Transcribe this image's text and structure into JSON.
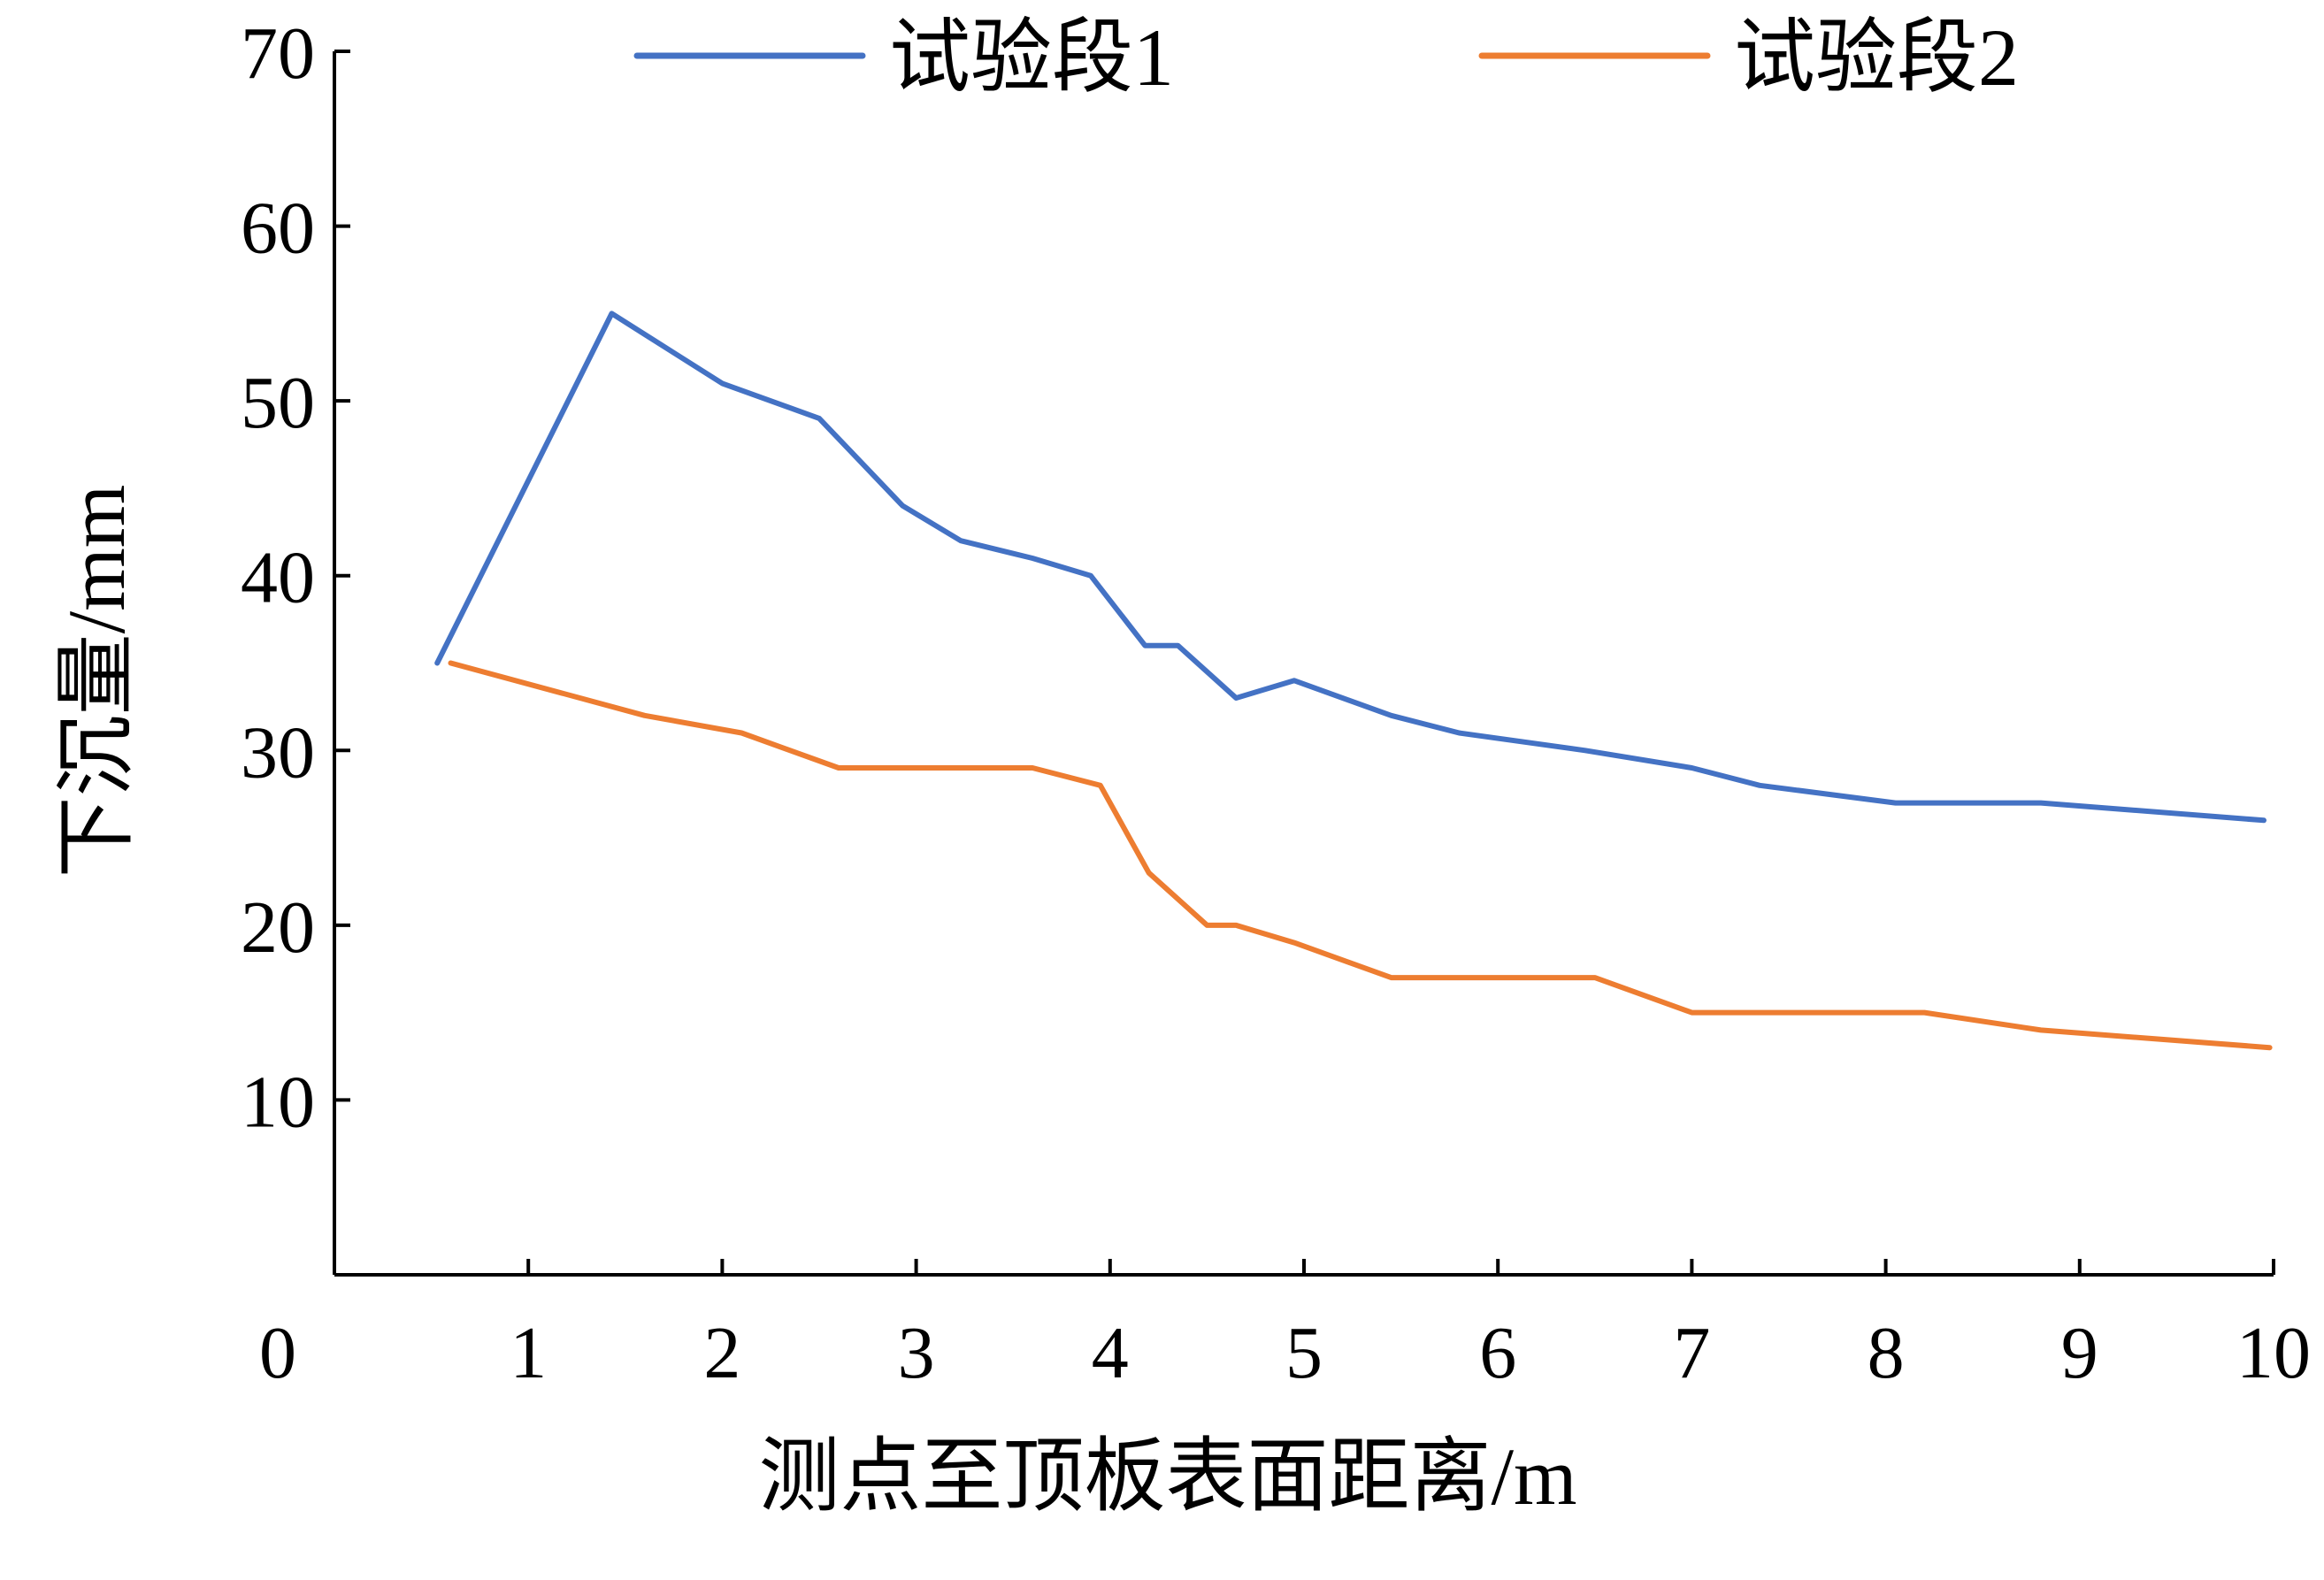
{
  "chart_data": {
    "type": "line",
    "xlabel": "测点至顶板表面距离/m",
    "ylabel": "下沉量/mm",
    "xlim": [
      0,
      10
    ],
    "ylim": [
      0,
      70
    ],
    "x_ticks": [
      0,
      1,
      2,
      3,
      4,
      5,
      6,
      7,
      8,
      9,
      10
    ],
    "y_ticks": [
      10,
      20,
      30,
      40,
      50,
      60,
      70
    ],
    "x_tick_labels": [
      "0",
      "1",
      "2",
      "3",
      "4",
      "5",
      "6",
      "7",
      "8",
      "9",
      "10"
    ],
    "y_tick_labels": [
      "10",
      "20",
      "30",
      "40",
      "50",
      "60",
      "70"
    ],
    "grid": false,
    "legend_position": "top",
    "series": [
      {
        "name": "试验段1",
        "color": "#4472c4",
        "points": [
          [
            0.53,
            35
          ],
          [
            1.43,
            55
          ],
          [
            2.0,
            51
          ],
          [
            2.5,
            49
          ],
          [
            2.93,
            44
          ],
          [
            3.23,
            42
          ],
          [
            3.6,
            41
          ],
          [
            3.9,
            40
          ],
          [
            4.18,
            36
          ],
          [
            4.35,
            36
          ],
          [
            4.65,
            33
          ],
          [
            4.95,
            34
          ],
          [
            5.45,
            32
          ],
          [
            5.8,
            31
          ],
          [
            6.45,
            30
          ],
          [
            7.0,
            29
          ],
          [
            7.35,
            28
          ],
          [
            8.05,
            27
          ],
          [
            8.8,
            27
          ],
          [
            9.95,
            26
          ]
        ]
      },
      {
        "name": "试验段2",
        "color": "#ed7d31",
        "points": [
          [
            0.6,
            35
          ],
          [
            1.6,
            32
          ],
          [
            2.1,
            31
          ],
          [
            2.6,
            29
          ],
          [
            3.6,
            29
          ],
          [
            3.95,
            28
          ],
          [
            4.2,
            23
          ],
          [
            4.5,
            20
          ],
          [
            4.65,
            20
          ],
          [
            4.95,
            19
          ],
          [
            5.45,
            17
          ],
          [
            6.5,
            17
          ],
          [
            7.0,
            15
          ],
          [
            8.2,
            15
          ],
          [
            8.8,
            14
          ],
          [
            9.98,
            13
          ]
        ]
      }
    ]
  }
}
